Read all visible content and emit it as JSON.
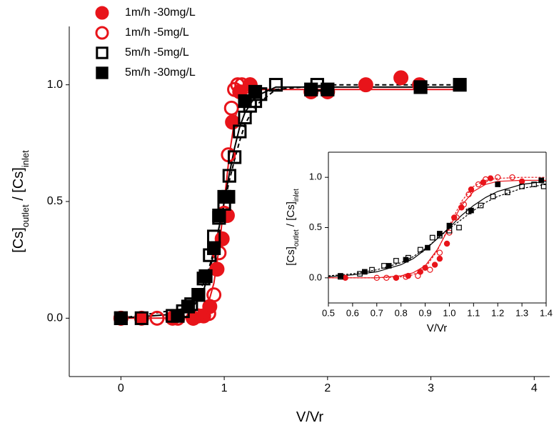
{
  "chart_data": [
    {
      "type": "scatter",
      "x_label": "V/Vr",
      "y_label": [
        "[Cs]",
        "outlet",
        " / [Cs]",
        "inlet"
      ],
      "xlim": [
        -0.5,
        4.15
      ],
      "ylim": [
        -0.25,
        1.25
      ],
      "xticks": [
        0,
        1,
        2,
        3,
        4
      ],
      "yticks": [
        {
          "value": 0,
          "label": "0.0"
        },
        {
          "value": 0.5,
          "label": "0.5"
        },
        {
          "value": 1,
          "label": "1.0"
        }
      ],
      "legend": "top-left",
      "series": [
        {
          "name": "1m/h -30mg/L",
          "color": "#e8141a",
          "marker": "circle",
          "filled": true,
          "x": [
            0,
            0.2,
            0.5,
            0.7,
            0.8,
            0.86,
            0.93,
            0.98,
            1.03,
            1.08,
            1.15,
            1.25,
            1.84,
            2.0,
            2.37,
            2.71,
            2.89
          ],
          "values": [
            0,
            0,
            0,
            0,
            0.01,
            0.05,
            0.21,
            0.34,
            0.44,
            0.84,
            0.97,
            1.0,
            0.97,
            0.97,
            1.0,
            1.03,
            1.0
          ]
        },
        {
          "name": "1m/h -5mg/L",
          "color": "#e8141a",
          "marker": "circle",
          "filled": false,
          "x": [
            0,
            0.35,
            0.55,
            0.7,
            0.75,
            0.8,
            0.85,
            0.9,
            0.95,
            1.0,
            1.04,
            1.07,
            1.1,
            1.13,
            1.17,
            1.2,
            1.25
          ],
          "values": [
            0,
            0,
            0,
            0,
            0.01,
            0.01,
            0.02,
            0.1,
            0.28,
            0.45,
            0.7,
            0.9,
            0.98,
            1.0,
            1.0,
            0.97,
            1.0
          ]
        },
        {
          "name": "5m/h -5mg/L",
          "color": "#000000",
          "marker": "square",
          "filled": false,
          "x": [
            0,
            0.2,
            0.5,
            0.6,
            0.68,
            0.75,
            0.8,
            0.86,
            0.9,
            0.95,
            1.0,
            1.05,
            1.1,
            1.15,
            1.2,
            1.25,
            1.3,
            1.35,
            1.5,
            1.9
          ],
          "values": [
            0,
            0,
            0.01,
            0.03,
            0.06,
            0.1,
            0.17,
            0.27,
            0.35,
            0.43,
            0.49,
            0.61,
            0.69,
            0.8,
            0.86,
            0.91,
            0.93,
            0.96,
            1.0,
            1.0
          ]
        },
        {
          "name": "5m/h -30mg/L",
          "color": "#000000",
          "marker": "square",
          "filled": true,
          "x": [
            0,
            0.55,
            0.65,
            0.75,
            0.82,
            0.9,
            0.95,
            1.0,
            1.04,
            1.2,
            1.3,
            1.84,
            2.0,
            2.9,
            3.28
          ],
          "values": [
            0,
            0.01,
            0.05,
            0.1,
            0.18,
            0.3,
            0.44,
            0.52,
            0.52,
            0.93,
            0.97,
            0.98,
            0.98,
            0.99,
            1.0
          ]
        }
      ],
      "fits": [
        {
          "color": "#e8141a",
          "dashed": false,
          "x": [
            0,
            0.6,
            0.7,
            0.8,
            0.85,
            0.9,
            0.95,
            1.0,
            1.05,
            1.1,
            1.15,
            1.2,
            1.3,
            1.5,
            2,
            3.3
          ],
          "values": [
            0,
            0,
            0.01,
            0.03,
            0.07,
            0.15,
            0.3,
            0.5,
            0.7,
            0.85,
            0.93,
            0.96,
            0.98,
            0.98,
            0.98,
            0.98
          ]
        },
        {
          "color": "#000000",
          "dashed": false,
          "x": [
            0,
            0.6,
            0.7,
            0.8,
            0.85,
            0.9,
            0.95,
            1.0,
            1.05,
            1.1,
            1.15,
            1.2,
            1.3,
            1.5,
            2,
            3.3
          ],
          "values": [
            0,
            0.02,
            0.05,
            0.12,
            0.19,
            0.28,
            0.39,
            0.5,
            0.62,
            0.73,
            0.82,
            0.88,
            0.95,
            0.99,
            0.99,
            0.99
          ]
        },
        {
          "color": "#000000",
          "dashed": true,
          "x": [
            0,
            0.6,
            0.7,
            0.8,
            0.85,
            0.9,
            0.95,
            1.0,
            1.05,
            1.1,
            1.15,
            1.2,
            1.3,
            1.5,
            2,
            3.3
          ],
          "values": [
            0,
            0.04,
            0.08,
            0.15,
            0.21,
            0.29,
            0.39,
            0.49,
            0.59,
            0.68,
            0.76,
            0.83,
            0.91,
            0.98,
            1.0,
            1.0
          ]
        }
      ]
    },
    {
      "type": "scatter",
      "x_label": "V/Vr",
      "y_label": [
        "[Cs]",
        "outlet",
        " / [Cs]",
        "inlet"
      ],
      "xlim": [
        0.5,
        1.4
      ],
      "ylim": [
        -0.25,
        1.25
      ],
      "xticks": [
        0.5,
        0.6,
        0.7,
        0.8,
        0.9,
        {
          "value": 1,
          "label": "1.0"
        },
        1.1,
        1.2,
        1.3,
        1.4
      ],
      "yticks": [
        {
          "value": 0,
          "label": "0.0"
        },
        {
          "value": 0.5,
          "label": "0.5"
        },
        {
          "value": 1,
          "label": "1.0"
        }
      ],
      "series": [
        {
          "color": "#e8141a",
          "marker": "circle",
          "filled": true,
          "x": [
            0.57,
            0.78,
            0.83,
            0.88,
            0.9,
            0.94,
            0.96,
            0.99,
            1.02,
            1.05,
            1.09,
            1.14,
            1.17,
            1.3
          ],
          "values": [
            0,
            0,
            0.02,
            0.06,
            0.1,
            0.13,
            0.19,
            0.34,
            0.6,
            0.7,
            0.88,
            0.95,
            0.99,
            0.96
          ]
        },
        {
          "color": "#e8141a",
          "marker": "circle",
          "filled": false,
          "x": [
            0.7,
            0.74,
            0.78,
            0.82,
            0.87,
            0.92,
            0.96,
            1.0,
            1.03,
            1.06,
            1.08,
            1.12,
            1.15,
            1.2,
            1.26
          ],
          "values": [
            0,
            0,
            0,
            0.01,
            0.02,
            0.08,
            0.25,
            0.45,
            0.6,
            0.73,
            0.83,
            0.93,
            0.98,
            1.0,
            1.0
          ]
        },
        {
          "color": "#000000",
          "marker": "square",
          "filled": false,
          "x": [
            0.55,
            0.63,
            0.68,
            0.73,
            0.78,
            0.83,
            0.88,
            0.93,
            0.96,
            1.0,
            1.04,
            1.08,
            1.13,
            1.18,
            1.24,
            1.3,
            1.35,
            1.39
          ],
          "values": [
            0.01,
            0.04,
            0.08,
            0.12,
            0.17,
            0.2,
            0.28,
            0.4,
            0.42,
            0.47,
            0.5,
            0.66,
            0.72,
            0.81,
            0.85,
            0.91,
            0.93,
            0.91
          ]
        },
        {
          "color": "#000000",
          "marker": "square",
          "filled": true,
          "x": [
            0.55,
            0.65,
            0.75,
            0.82,
            0.91,
            0.96,
            1.0,
            1.09,
            1.2,
            1.38
          ],
          "values": [
            0.02,
            0.06,
            0.12,
            0.18,
            0.3,
            0.44,
            0.52,
            0.67,
            0.93,
            0.97
          ]
        }
      ],
      "fits": [
        {
          "color": "#e8141a",
          "dashed": false,
          "x": [
            0.5,
            0.6,
            0.7,
            0.8,
            0.85,
            0.9,
            0.95,
            1.0,
            1.05,
            1.1,
            1.15,
            1.2,
            1.3,
            1.4
          ],
          "values": [
            0,
            0,
            0,
            0.02,
            0.05,
            0.12,
            0.28,
            0.5,
            0.72,
            0.86,
            0.93,
            0.96,
            0.97,
            0.97
          ]
        },
        {
          "color": "#e8141a",
          "dashed": true,
          "x": [
            0.5,
            0.6,
            0.7,
            0.8,
            0.85,
            0.9,
            0.95,
            1.0,
            1.05,
            1.1,
            1.15,
            1.2,
            1.3,
            1.4
          ],
          "values": [
            0,
            0,
            0,
            0.01,
            0.03,
            0.1,
            0.27,
            0.52,
            0.76,
            0.91,
            0.97,
            0.99,
            1.0,
            1.0
          ]
        },
        {
          "color": "#000000",
          "dashed": false,
          "x": [
            0.5,
            0.6,
            0.7,
            0.8,
            0.85,
            0.9,
            0.95,
            1.0,
            1.05,
            1.1,
            1.15,
            1.2,
            1.3,
            1.4
          ],
          "values": [
            0.01,
            0.03,
            0.06,
            0.13,
            0.19,
            0.28,
            0.39,
            0.5,
            0.62,
            0.72,
            0.8,
            0.86,
            0.93,
            0.96
          ]
        },
        {
          "color": "#000000",
          "dashed": true,
          "x": [
            0.5,
            0.6,
            0.7,
            0.8,
            0.85,
            0.9,
            0.95,
            1.0,
            1.05,
            1.1,
            1.15,
            1.2,
            1.3,
            1.4
          ],
          "values": [
            0.02,
            0.04,
            0.08,
            0.15,
            0.21,
            0.29,
            0.39,
            0.49,
            0.58,
            0.67,
            0.75,
            0.81,
            0.89,
            0.93
          ]
        }
      ]
    }
  ]
}
